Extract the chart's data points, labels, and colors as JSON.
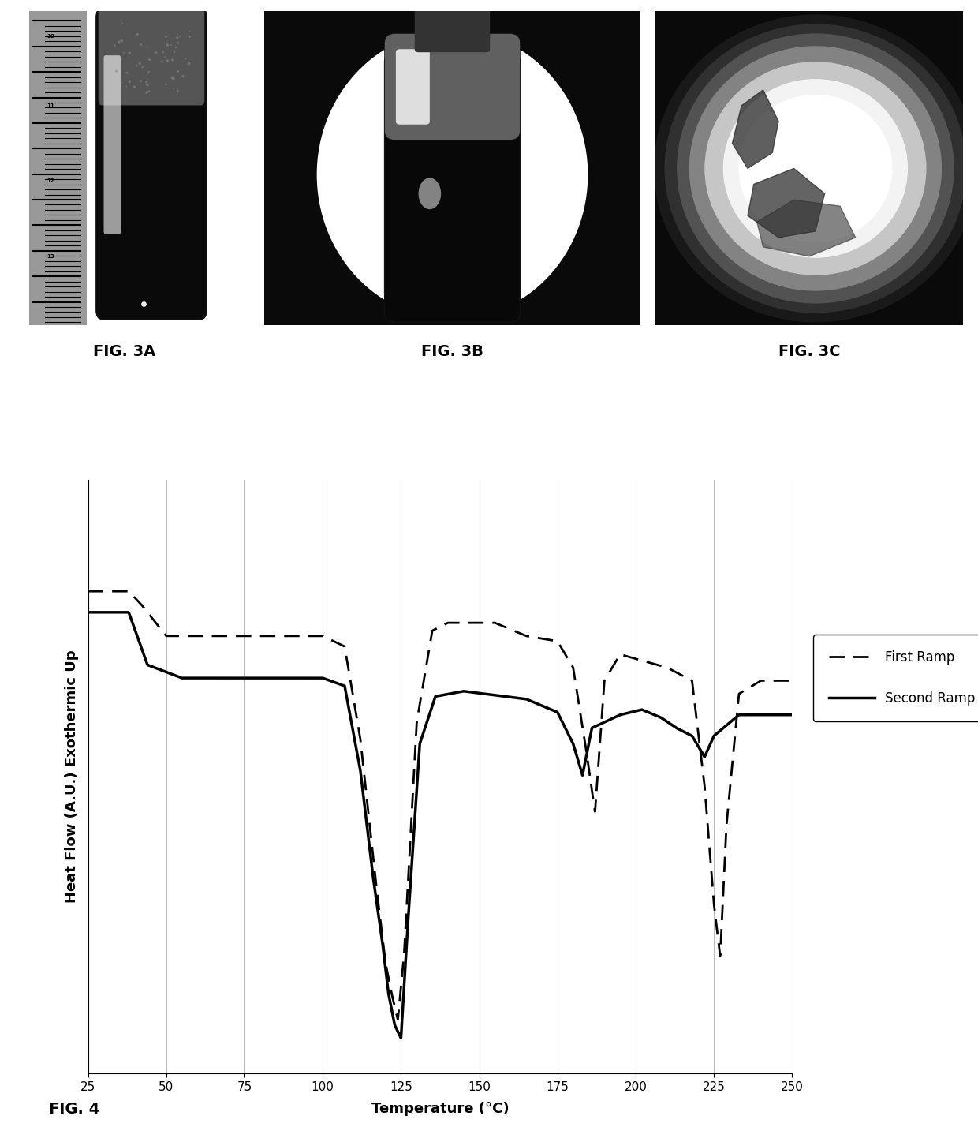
{
  "fig3a_label": "FIG. 3A",
  "fig3b_label": "FIG. 3B",
  "fig3c_label": "FIG. 3C",
  "fig4_label": "FIG. 4",
  "xlabel": "Temperature (°C)",
  "ylabel": "Heat Flow (A.U.) Exothermic Up",
  "xlim": [
    25,
    250
  ],
  "xticks": [
    25,
    50,
    75,
    100,
    125,
    150,
    175,
    200,
    225,
    250
  ],
  "legend_first": "First Ramp",
  "legend_second": "Second Ramp",
  "grid_color": "#bbbbbb",
  "line_color": "#000000",
  "background_color": "#ffffff",
  "label_fontsize": 13,
  "tick_fontsize": 11,
  "fig_label_fontsize": 14
}
